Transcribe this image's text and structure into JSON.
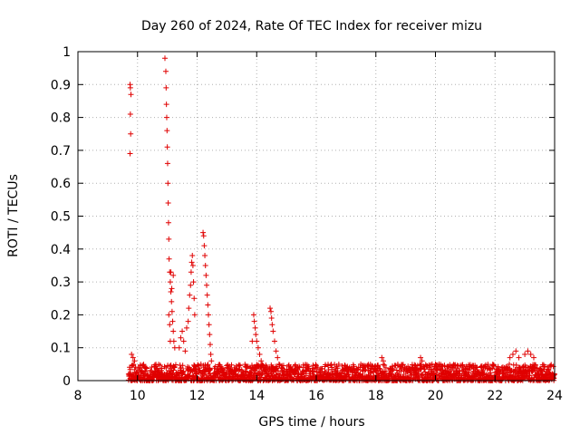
{
  "chart_data": {
    "type": "scatter",
    "title": "Day 260 of 2024, Rate Of TEC Index for receiver mizu",
    "xlabel": "GPS time / hours",
    "ylabel": "ROTI / TECUs",
    "xlim": [
      8,
      24
    ],
    "ylim": [
      0,
      1
    ],
    "xticks": [
      8,
      10,
      12,
      14,
      16,
      18,
      20,
      22,
      24
    ],
    "yticks": [
      0,
      0.1,
      0.2,
      0.3,
      0.4,
      0.5,
      0.6,
      0.7,
      0.8,
      0.9,
      1
    ],
    "ytick_labels": [
      "0",
      "0.1",
      "0.2",
      "0.3",
      "0.4",
      "0.5",
      "0.6",
      "0.7",
      "0.8",
      "0.9",
      "1"
    ],
    "grid": true,
    "marker": "+",
    "color": "#e00000",
    "series": [
      {
        "name": "ROTI",
        "points": [
          [
            9.75,
            0.9
          ],
          [
            9.76,
            0.89
          ],
          [
            9.78,
            0.87
          ],
          [
            9.76,
            0.81
          ],
          [
            9.77,
            0.75
          ],
          [
            9.75,
            0.69
          ],
          [
            9.8,
            0.08
          ],
          [
            9.85,
            0.07
          ],
          [
            9.9,
            0.06
          ],
          [
            10.92,
            0.98
          ],
          [
            10.95,
            0.94
          ],
          [
            10.96,
            0.89
          ],
          [
            10.97,
            0.84
          ],
          [
            10.98,
            0.8
          ],
          [
            10.99,
            0.76
          ],
          [
            11.0,
            0.71
          ],
          [
            11.01,
            0.66
          ],
          [
            11.02,
            0.6
          ],
          [
            11.03,
            0.54
          ],
          [
            11.04,
            0.48
          ],
          [
            11.05,
            0.43
          ],
          [
            11.06,
            0.37
          ],
          [
            11.08,
            0.33
          ],
          [
            11.1,
            0.3
          ],
          [
            11.12,
            0.27
          ],
          [
            11.14,
            0.24
          ],
          [
            11.16,
            0.21
          ],
          [
            11.18,
            0.18
          ],
          [
            11.2,
            0.15
          ],
          [
            11.22,
            0.12
          ],
          [
            11.25,
            0.1
          ],
          [
            11.1,
            0.12
          ],
          [
            11.12,
            0.33
          ],
          [
            11.2,
            0.32
          ],
          [
            11.15,
            0.28
          ],
          [
            11.05,
            0.2
          ],
          [
            11.08,
            0.17
          ],
          [
            11.4,
            0.1
          ],
          [
            11.45,
            0.13
          ],
          [
            11.5,
            0.15
          ],
          [
            11.55,
            0.12
          ],
          [
            11.6,
            0.09
          ],
          [
            11.65,
            0.16
          ],
          [
            11.7,
            0.18
          ],
          [
            11.72,
            0.22
          ],
          [
            11.75,
            0.26
          ],
          [
            11.78,
            0.29
          ],
          [
            11.8,
            0.33
          ],
          [
            11.82,
            0.36
          ],
          [
            11.84,
            0.38
          ],
          [
            11.86,
            0.35
          ],
          [
            11.88,
            0.3
          ],
          [
            11.9,
            0.25
          ],
          [
            11.92,
            0.2
          ],
          [
            12.2,
            0.45
          ],
          [
            12.22,
            0.44
          ],
          [
            12.24,
            0.41
          ],
          [
            12.26,
            0.38
          ],
          [
            12.28,
            0.35
          ],
          [
            12.3,
            0.32
          ],
          [
            12.32,
            0.29
          ],
          [
            12.34,
            0.26
          ],
          [
            12.36,
            0.23
          ],
          [
            12.38,
            0.2
          ],
          [
            12.4,
            0.17
          ],
          [
            12.42,
            0.14
          ],
          [
            12.44,
            0.11
          ],
          [
            12.46,
            0.08
          ],
          [
            12.48,
            0.06
          ],
          [
            13.9,
            0.2
          ],
          [
            13.92,
            0.18
          ],
          [
            13.95,
            0.16
          ],
          [
            13.97,
            0.14
          ],
          [
            14.0,
            0.12
          ],
          [
            14.05,
            0.1
          ],
          [
            14.1,
            0.08
          ],
          [
            14.15,
            0.06
          ],
          [
            13.85,
            0.12
          ],
          [
            14.45,
            0.22
          ],
          [
            14.48,
            0.21
          ],
          [
            14.5,
            0.19
          ],
          [
            14.52,
            0.17
          ],
          [
            14.55,
            0.15
          ],
          [
            14.6,
            0.12
          ],
          [
            14.65,
            0.09
          ],
          [
            14.7,
            0.07
          ],
          [
            14.75,
            0.05
          ],
          [
            18.2,
            0.07
          ],
          [
            18.25,
            0.06
          ],
          [
            19.5,
            0.07
          ],
          [
            19.55,
            0.06
          ],
          [
            20.0,
            0.05
          ],
          [
            22.5,
            0.07
          ],
          [
            22.6,
            0.08
          ],
          [
            22.7,
            0.09
          ],
          [
            22.8,
            0.07
          ],
          [
            23.0,
            0.08
          ],
          [
            23.1,
            0.09
          ],
          [
            23.2,
            0.08
          ],
          [
            23.3,
            0.07
          ]
        ]
      }
    ],
    "baseline_band": {
      "x_from": 9.7,
      "x_to": 24.0,
      "y_max": 0.05
    }
  }
}
